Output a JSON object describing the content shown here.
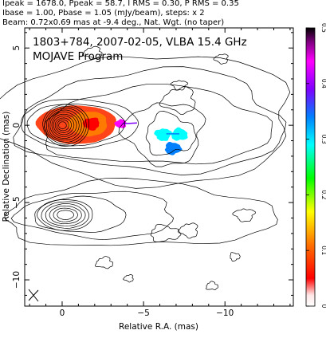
{
  "header": {
    "line1": "Ipeak = 1678.0, Ppeak = 58.7, I RMS = 0.30, P RMS = 0.35",
    "line2": "Ibase = 1.00, Pbase = 1.05 (mJy/beam), steps: x 2",
    "line3": "Beam: 0.72x0.69 mas at -9.4 deg., Nat. Wgt. (no taper)"
  },
  "chart_data": {
    "type": "contour",
    "title": "1803+784, 2007-02-05, VLBA 15.4 GHz",
    "subtitle": "MOJAVE Program",
    "xlabel": "Relative R.A. (mas)",
    "ylabel": "Relative Declination (mas)",
    "xlim": [
      2.3,
      -14.2
    ],
    "ylim": [
      -11.7,
      6.3
    ],
    "x_ticks": [
      0,
      -5,
      -10
    ],
    "y_ticks": [
      5,
      0,
      -5,
      -10
    ],
    "x_tick_labels": [
      "0",
      "−5",
      "−10"
    ],
    "y_tick_labels": [
      "5",
      "0",
      "−5",
      "−10"
    ],
    "colorbar": {
      "min": 0,
      "max": 0.5,
      "ticks": [
        0,
        0.1,
        0.2,
        0.3,
        0.4,
        0.5
      ],
      "tick_labels": [
        "0",
        "0.1",
        "0.2",
        "0.3",
        "0.4",
        "0.5"
      ],
      "colors": [
        "#ffffff",
        "#ff0000",
        "#ff8000",
        "#ffff00",
        "#00ff00",
        "#00ffff",
        "#0080ff",
        "#8000ff",
        "#ff00ff",
        "#000000"
      ]
    },
    "core": {
      "x": 0,
      "y": 0
    },
    "polarized_regions": [
      {
        "x": -1.8,
        "y": 0.1,
        "value": 0.06
      },
      {
        "x": -3.6,
        "y": 0.1,
        "value": 0.45
      },
      {
        "x": -6.2,
        "y": -0.6,
        "value": 0.25
      },
      {
        "x": -7.2,
        "y": -0.6,
        "value": 0.28
      },
      {
        "x": -6.8,
        "y": -1.5,
        "value": 0.32
      }
    ],
    "beam": {
      "major": 0.72,
      "minor": 0.69,
      "pa": -9.4
    }
  }
}
